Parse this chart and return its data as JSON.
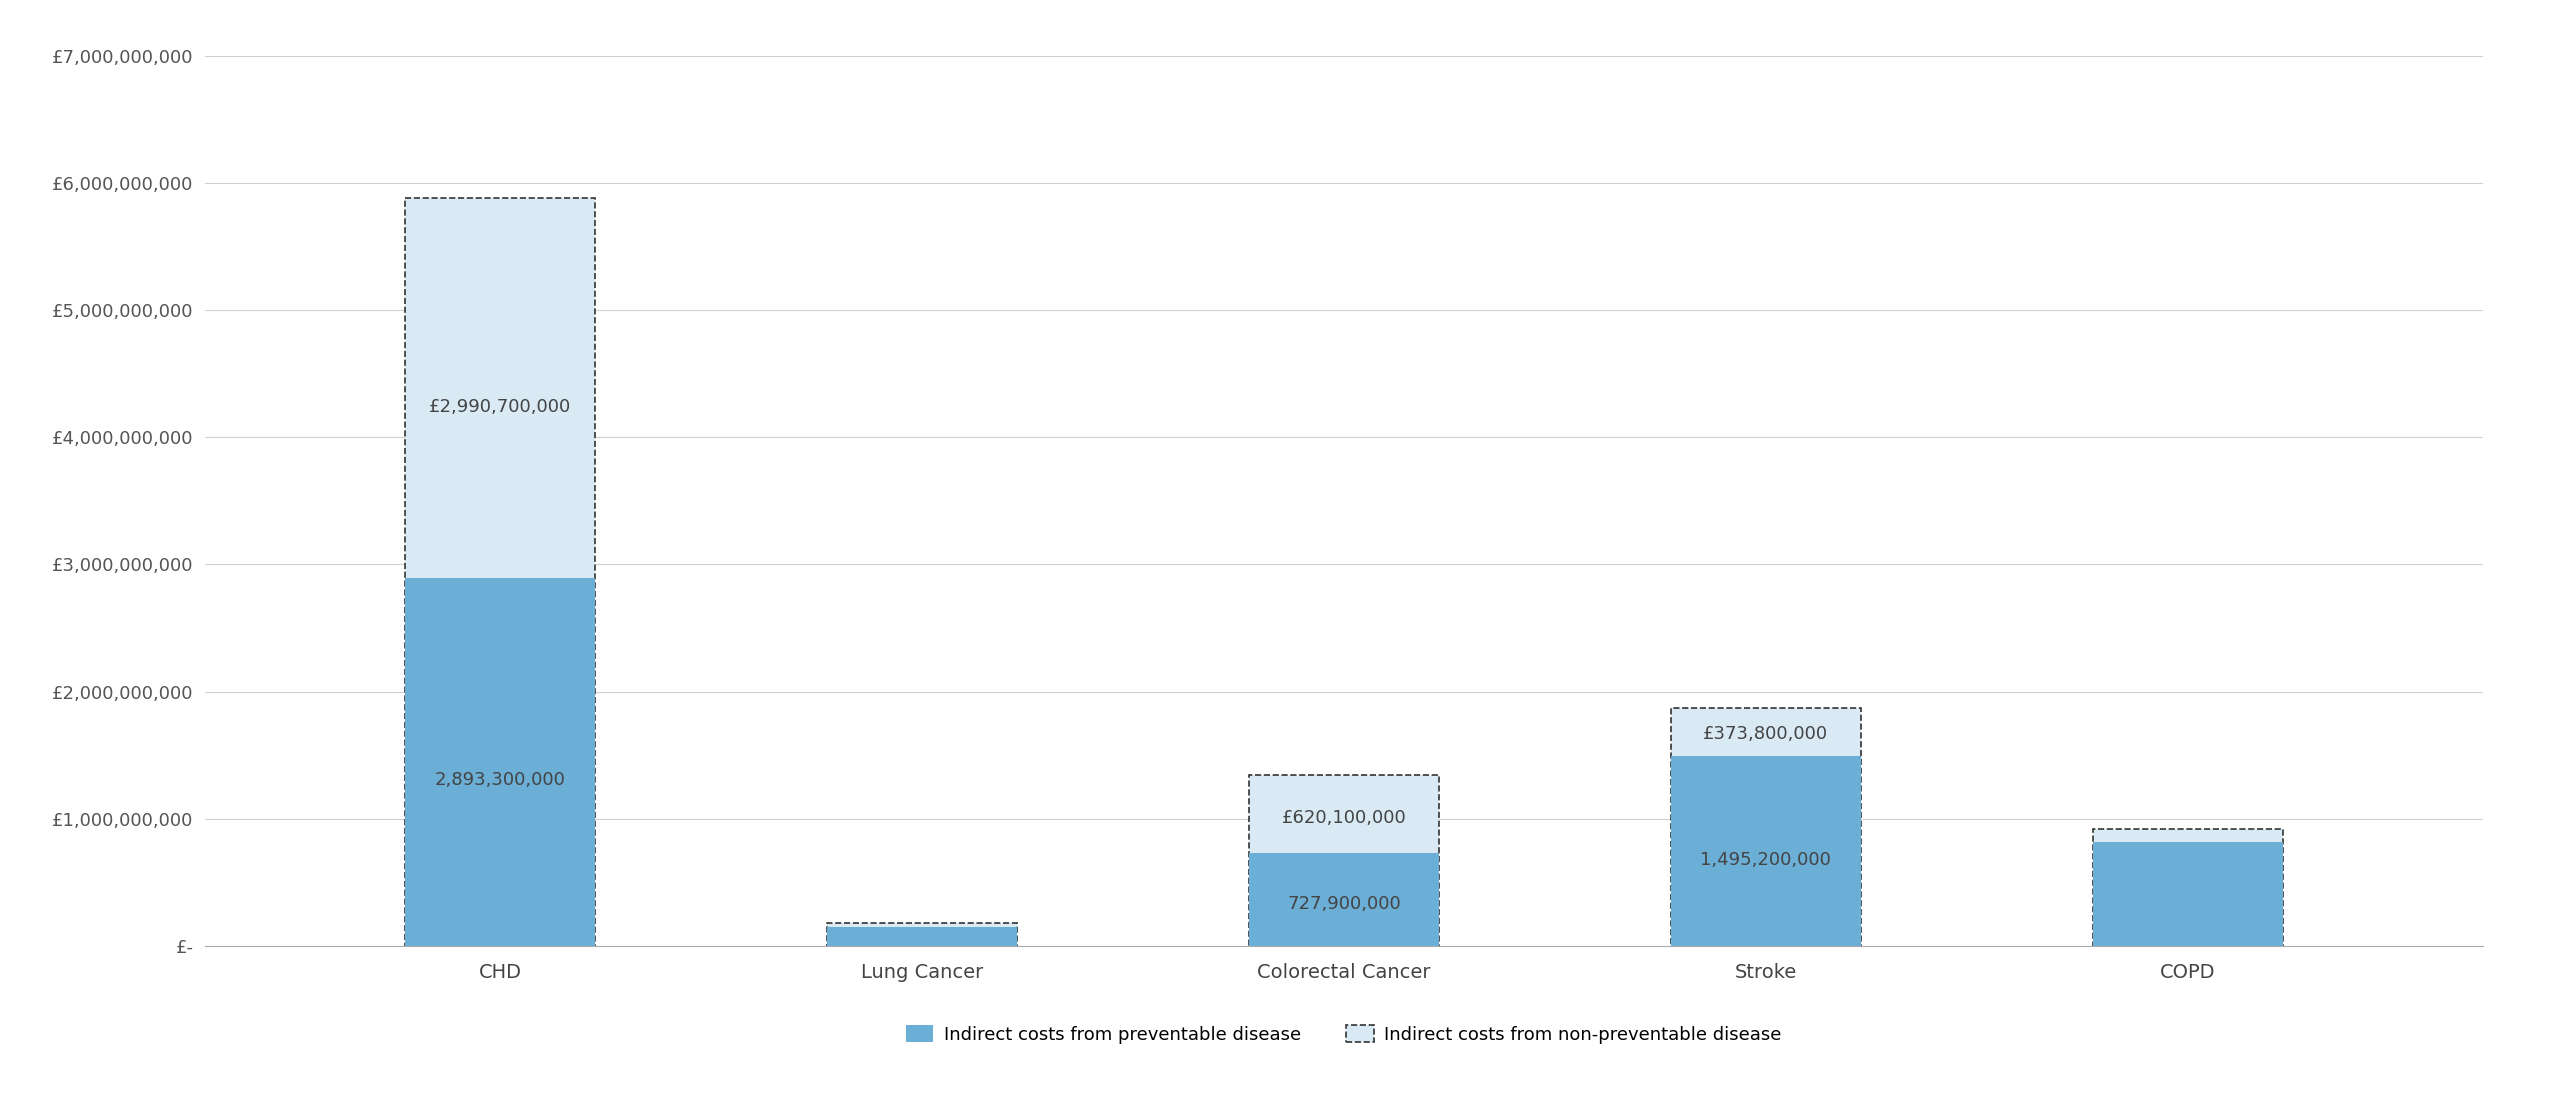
{
  "categories": [
    "CHD",
    "Lung Cancer",
    "Colorectal Cancer",
    "Stroke",
    "COPD"
  ],
  "preventable": [
    2893300000,
    152000000,
    727900000,
    1495200000,
    820000000
  ],
  "non_preventable": [
    2990700000,
    33000000,
    620100000,
    373800000,
    100000000
  ],
  "preventable_labels": [
    "2,893,300,000",
    "",
    "727,900,000",
    "1,495,200,000",
    ""
  ],
  "non_preventable_labels": [
    "£2,990,700,000",
    "",
    "£620,100,000",
    "£373,800,000",
    ""
  ],
  "solid_color": "#6baed6",
  "light_color": "#daeaf5",
  "background_color": "#ffffff",
  "grid_color": "#d0d0d0",
  "ylim": [
    0,
    7000000000
  ],
  "yticks": [
    0,
    1000000000,
    2000000000,
    3000000000,
    4000000000,
    5000000000,
    6000000000,
    7000000000
  ],
  "legend_labels": [
    "Indirect costs from preventable disease",
    "Indirect costs from non-preventable disease"
  ],
  "figsize": [
    25.6,
    11.13
  ],
  "dpi": 100,
  "bar_width": 0.45
}
